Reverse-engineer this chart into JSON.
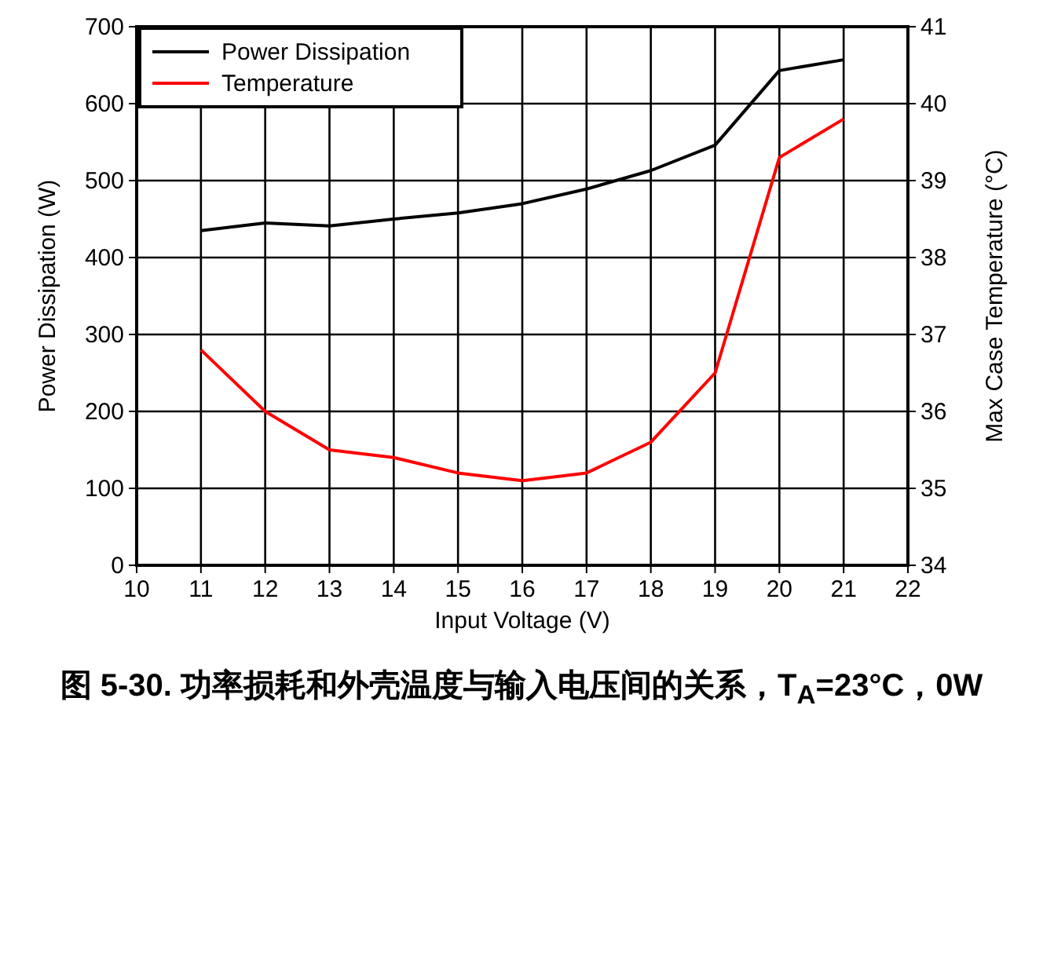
{
  "chart_data": {
    "type": "line",
    "title": "图 5-30. 功率损耗和外壳温度与输入电压间的关系，T$_{A}$=23°C，0W",
    "xlabel": "Input Voltage (V)",
    "ylabel": "Power Dissipation (W)",
    "y2label": "Max Case Temperature (°C)",
    "x": [
      11,
      12,
      13,
      14,
      15,
      16,
      17,
      18,
      19,
      20,
      21
    ],
    "series": [
      {
        "name": "Power Dissipation",
        "color": "#000000",
        "values": [
          435,
          445,
          441,
          450,
          458,
          470,
          489,
          513,
          546,
          643,
          657
        ]
      },
      {
        "name": "Temperature",
        "color": "#ff0000",
        "axis": "y2",
        "values": [
          36.8,
          36.0,
          35.5,
          35.4,
          35.2,
          35.1,
          35.2,
          35.6,
          36.5,
          39.3,
          39.8
        ]
      }
    ],
    "xlim": [
      10,
      22
    ],
    "xticks": [
      10,
      11,
      12,
      13,
      14,
      15,
      16,
      17,
      18,
      19,
      20,
      21,
      22
    ],
    "ylim": [
      0,
      700
    ],
    "yticks": [
      0,
      100,
      200,
      300,
      400,
      500,
      600,
      700
    ],
    "y2lim": [
      34,
      41
    ],
    "y2ticks": [
      34,
      35,
      36,
      37,
      38,
      39,
      40,
      41
    ],
    "grid": true,
    "legend": "top left",
    "marker": "none",
    "line_style": "solid"
  }
}
